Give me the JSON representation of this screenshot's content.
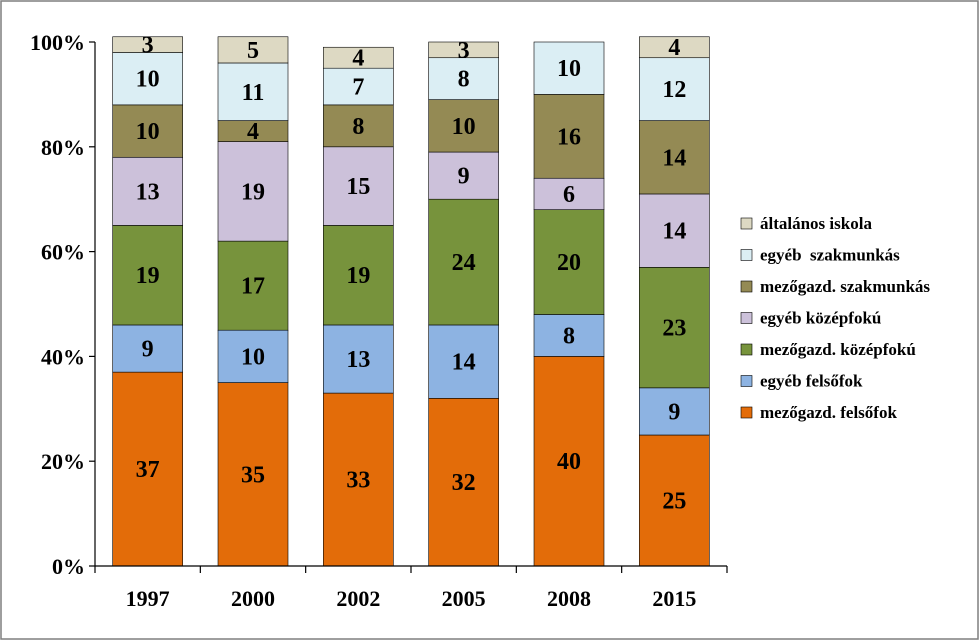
{
  "chart_data": {
    "type": "bar",
    "stacked": true,
    "percent": true,
    "categories": [
      "1997",
      "2000",
      "2002",
      "2005",
      "2008",
      "2015"
    ],
    "series": [
      {
        "name": "mezőgazd. felsőfok",
        "color": "#E36C09",
        "values": [
          37,
          35,
          33,
          32,
          40,
          25
        ]
      },
      {
        "name": "egyéb felsőfok",
        "color": "#8DB3E2",
        "values": [
          9,
          10,
          13,
          14,
          8,
          9
        ]
      },
      {
        "name": "mezőgazd. középfokú",
        "color": "#77933C",
        "values": [
          19,
          17,
          19,
          24,
          20,
          23
        ]
      },
      {
        "name": "egyéb középfokú",
        "color": "#CCC1DA",
        "values": [
          13,
          19,
          15,
          9,
          6,
          14
        ]
      },
      {
        "name": "mezőgazd. szakmunkás",
        "color": "#948A54",
        "values": [
          10,
          4,
          8,
          10,
          16,
          14
        ]
      },
      {
        "name": "egyéb  szakmunkás",
        "color": "#DBEEF4",
        "values": [
          10,
          11,
          7,
          8,
          10,
          12
        ]
      },
      {
        "name": "általános iskola",
        "color": "#DDD9C3",
        "values": [
          3,
          5,
          4,
          3,
          0,
          4
        ]
      }
    ],
    "y_ticks": [
      "0%",
      "20%",
      "40%",
      "60%",
      "80%",
      "100%"
    ],
    "ylim": [
      0,
      100
    ],
    "grid": false,
    "legend_position": "right"
  }
}
